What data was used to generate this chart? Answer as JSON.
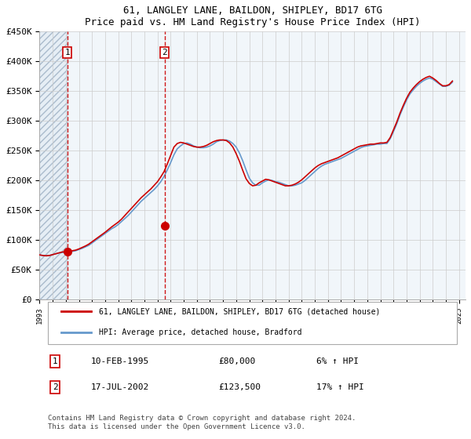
{
  "title": "61, LANGLEY LANE, BAILDON, SHIPLEY, BD17 6TG",
  "subtitle": "Price paid vs. HM Land Registry's House Price Index (HPI)",
  "ylabel": "",
  "ylim": [
    0,
    450000
  ],
  "yticks": [
    0,
    50000,
    100000,
    150000,
    200000,
    250000,
    300000,
    350000,
    400000,
    450000
  ],
  "ytick_labels": [
    "£0",
    "£50K",
    "£100K",
    "£150K",
    "£200K",
    "£250K",
    "£300K",
    "£350K",
    "£400K",
    "£450K"
  ],
  "xlim_start": 1993.0,
  "xlim_end": 2025.5,
  "sale1_date": 1995.11,
  "sale1_price": 80000,
  "sale2_date": 2002.54,
  "sale2_price": 123500,
  "sale1_label": "1",
  "sale2_label": "2",
  "legend_line1": "61, LANGLEY LANE, BAILDON, SHIPLEY, BD17 6TG (detached house)",
  "legend_line2": "HPI: Average price, detached house, Bradford",
  "table_row1": [
    "1",
    "10-FEB-1995",
    "£80,000",
    "6% ↑ HPI"
  ],
  "table_row2": [
    "2",
    "17-JUL-2002",
    "£123,500",
    "17% ↑ HPI"
  ],
  "footnote": "Contains HM Land Registry data © Crown copyright and database right 2024.\nThis data is licensed under the Open Government Licence v3.0.",
  "hatch_color": "#c8d8e8",
  "hatch_pattern": "////",
  "bg_color": "#dce8f0",
  "plot_bg": "#ffffff",
  "red_line_color": "#cc0000",
  "blue_line_color": "#6699cc",
  "dashed_line_color": "#cc0000",
  "grid_color": "#cccccc",
  "hpi_data_x": [
    1993.0,
    1993.25,
    1993.5,
    1993.75,
    1994.0,
    1994.25,
    1994.5,
    1994.75,
    1995.0,
    1995.25,
    1995.5,
    1995.75,
    1996.0,
    1996.25,
    1996.5,
    1996.75,
    1997.0,
    1997.25,
    1997.5,
    1997.75,
    1998.0,
    1998.25,
    1998.5,
    1998.75,
    1999.0,
    1999.25,
    1999.5,
    1999.75,
    2000.0,
    2000.25,
    2000.5,
    2000.75,
    2001.0,
    2001.25,
    2001.5,
    2001.75,
    2002.0,
    2002.25,
    2002.5,
    2002.75,
    2003.0,
    2003.25,
    2003.5,
    2003.75,
    2004.0,
    2004.25,
    2004.5,
    2004.75,
    2005.0,
    2005.25,
    2005.5,
    2005.75,
    2006.0,
    2006.25,
    2006.5,
    2006.75,
    2007.0,
    2007.25,
    2007.5,
    2007.75,
    2008.0,
    2008.25,
    2008.5,
    2008.75,
    2009.0,
    2009.25,
    2009.5,
    2009.75,
    2010.0,
    2010.25,
    2010.5,
    2010.75,
    2011.0,
    2011.25,
    2011.5,
    2011.75,
    2012.0,
    2012.25,
    2012.5,
    2012.75,
    2013.0,
    2013.25,
    2013.5,
    2013.75,
    2014.0,
    2014.25,
    2014.5,
    2014.75,
    2015.0,
    2015.25,
    2015.5,
    2015.75,
    2016.0,
    2016.25,
    2016.5,
    2016.75,
    2017.0,
    2017.25,
    2017.5,
    2017.75,
    2018.0,
    2018.25,
    2018.5,
    2018.75,
    2019.0,
    2019.25,
    2019.5,
    2019.75,
    2020.0,
    2020.25,
    2020.5,
    2020.75,
    2021.0,
    2021.25,
    2021.5,
    2021.75,
    2022.0,
    2022.25,
    2022.5,
    2022.75,
    2023.0,
    2023.25,
    2023.5,
    2023.75,
    2024.0,
    2024.25,
    2024.5
  ],
  "hpi_data_y": [
    75000,
    74000,
    73500,
    74000,
    75500,
    77000,
    78500,
    79000,
    80000,
    80500,
    81000,
    82000,
    84000,
    86000,
    88500,
    91000,
    95000,
    99000,
    103000,
    107000,
    111000,
    115000,
    119000,
    122000,
    126000,
    131000,
    136000,
    141000,
    147000,
    153000,
    159000,
    165000,
    170000,
    175000,
    180000,
    185000,
    191000,
    198000,
    207000,
    218000,
    230000,
    243000,
    253000,
    258000,
    262000,
    263000,
    261000,
    258000,
    256000,
    255000,
    255000,
    256000,
    258000,
    261000,
    265000,
    267000,
    268000,
    268000,
    266000,
    262000,
    256000,
    246000,
    233000,
    218000,
    204000,
    196000,
    192000,
    192000,
    196000,
    199000,
    201000,
    200000,
    198000,
    197000,
    195000,
    193000,
    191000,
    191000,
    192000,
    194000,
    196000,
    200000,
    205000,
    210000,
    215000,
    220000,
    224000,
    227000,
    229000,
    231000,
    233000,
    235000,
    237000,
    240000,
    243000,
    246000,
    249000,
    252000,
    255000,
    257000,
    258000,
    259000,
    260000,
    261000,
    261000,
    262000,
    262000,
    270000,
    282000,
    295000,
    310000,
    323000,
    335000,
    345000,
    352000,
    358000,
    363000,
    367000,
    370000,
    372000,
    370000,
    366000,
    362000,
    358000,
    358000,
    360000,
    365000
  ],
  "price_data_x": [
    1993.0,
    1993.25,
    1993.5,
    1993.75,
    1994.0,
    1994.25,
    1994.5,
    1994.75,
    1995.0,
    1995.25,
    1995.5,
    1995.75,
    1996.0,
    1996.25,
    1996.5,
    1996.75,
    1997.0,
    1997.25,
    1997.5,
    1997.75,
    1998.0,
    1998.25,
    1998.5,
    1998.75,
    1999.0,
    1999.25,
    1999.5,
    1999.75,
    2000.0,
    2000.25,
    2000.5,
    2000.75,
    2001.0,
    2001.25,
    2001.5,
    2001.75,
    2002.0,
    2002.25,
    2002.5,
    2002.75,
    2003.0,
    2003.25,
    2003.5,
    2003.75,
    2004.0,
    2004.25,
    2004.5,
    2004.75,
    2005.0,
    2005.25,
    2005.5,
    2005.75,
    2006.0,
    2006.25,
    2006.5,
    2006.75,
    2007.0,
    2007.25,
    2007.5,
    2007.75,
    2008.0,
    2008.25,
    2008.5,
    2008.75,
    2009.0,
    2009.25,
    2009.5,
    2009.75,
    2010.0,
    2010.25,
    2010.5,
    2010.75,
    2011.0,
    2011.25,
    2011.5,
    2011.75,
    2012.0,
    2012.25,
    2012.5,
    2012.75,
    2013.0,
    2013.25,
    2013.5,
    2013.75,
    2014.0,
    2014.25,
    2014.5,
    2014.75,
    2015.0,
    2015.25,
    2015.5,
    2015.75,
    2016.0,
    2016.25,
    2016.5,
    2016.75,
    2017.0,
    2017.25,
    2017.5,
    2017.75,
    2018.0,
    2018.25,
    2018.5,
    2018.75,
    2019.0,
    2019.25,
    2019.5,
    2019.75,
    2020.0,
    2020.25,
    2020.5,
    2020.75,
    2021.0,
    2021.25,
    2021.5,
    2021.75,
    2022.0,
    2022.25,
    2022.5,
    2022.75,
    2023.0,
    2023.25,
    2023.5,
    2023.75,
    2024.0,
    2024.25,
    2024.5
  ],
  "price_data_y": [
    75000,
    74000,
    73500,
    74000,
    75500,
    77000,
    78500,
    80000,
    80000,
    81000,
    82000,
    83000,
    85000,
    87500,
    90000,
    93000,
    97000,
    101000,
    105000,
    109000,
    113000,
    117500,
    122000,
    126000,
    130000,
    135000,
    141000,
    147000,
    153000,
    159000,
    165000,
    171000,
    176000,
    181000,
    186000,
    192000,
    198000,
    206000,
    215000,
    228000,
    242000,
    256000,
    262000,
    264000,
    263000,
    261000,
    259000,
    257000,
    256000,
    256000,
    257000,
    259000,
    262000,
    265000,
    267000,
    268000,
    268000,
    267000,
    263000,
    256000,
    245000,
    232000,
    217000,
    203000,
    195000,
    191000,
    192000,
    196000,
    199000,
    202000,
    201000,
    199000,
    197000,
    195000,
    193000,
    191000,
    191000,
    192000,
    194000,
    197000,
    201000,
    206000,
    211000,
    216000,
    221000,
    225000,
    228000,
    230000,
    232000,
    234000,
    236000,
    238000,
    241000,
    244000,
    247000,
    250000,
    253000,
    256000,
    258000,
    259000,
    260000,
    261000,
    261000,
    262000,
    263000,
    263000,
    264000,
    272000,
    285000,
    298000,
    313000,
    326000,
    338000,
    348000,
    355000,
    361000,
    366000,
    370000,
    373000,
    375000,
    372000,
    368000,
    363000,
    359000,
    359000,
    361000,
    367000
  ]
}
